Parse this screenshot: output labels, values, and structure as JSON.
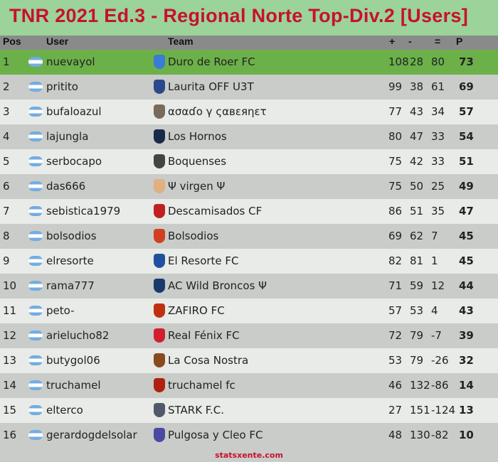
{
  "title": "TNR 2021 Ed.3 - Regional Norte Top-Div.2 [Users]",
  "headers": {
    "pos": "Pos",
    "user": "User",
    "team": "Team",
    "plus": "+",
    "minus": "-",
    "diff": "=",
    "points": "P"
  },
  "colors": {
    "title": "#c8102e",
    "leader_row": "#6cb04a",
    "header_bg": "#8a8a8a"
  },
  "rows": [
    {
      "pos": "1",
      "user": "nuevayol",
      "team": "Duro de Roer FC",
      "plus": "108",
      "minus": "28",
      "diff": "80",
      "points": "73",
      "crest": "#3a7bd5"
    },
    {
      "pos": "2",
      "user": "pritito",
      "team": "Laurita OFF U3T",
      "plus": "99",
      "minus": "38",
      "diff": "61",
      "points": "69",
      "crest": "#2a4a8a"
    },
    {
      "pos": "3",
      "user": "bufaloazul",
      "team": "ασαɗο γ ςαвεяηετ",
      "plus": "77",
      "minus": "43",
      "diff": "34",
      "points": "57",
      "crest": "#7a6a5a"
    },
    {
      "pos": "4",
      "user": "lajungla",
      "team": "Los Hornos",
      "plus": "80",
      "minus": "47",
      "diff": "33",
      "points": "54",
      "crest": "#1a2a4a"
    },
    {
      "pos": "5",
      "user": "serbocapo",
      "team": "Boquenses",
      "plus": "75",
      "minus": "42",
      "diff": "33",
      "points": "51",
      "crest": "#444"
    },
    {
      "pos": "6",
      "user": "das666",
      "team": "Ψ virgen Ψ",
      "plus": "75",
      "minus": "50",
      "diff": "25",
      "points": "49",
      "crest": "#e0b080"
    },
    {
      "pos": "7",
      "user": "sebistica1979",
      "team": "Descamisados CF",
      "plus": "86",
      "minus": "51",
      "diff": "35",
      "points": "47",
      "crest": "#c02020"
    },
    {
      "pos": "8",
      "user": "bolsodios",
      "team": "Bolsodios",
      "plus": "69",
      "minus": "62",
      "diff": "7",
      "points": "45",
      "crest": "#d04020"
    },
    {
      "pos": "9",
      "user": "elresorte",
      "team": "El Resorte FC",
      "plus": "82",
      "minus": "81",
      "diff": "1",
      "points": "45",
      "crest": "#2050a0"
    },
    {
      "pos": "10",
      "user": "rama777",
      "team": "AC Wild Broncos Ψ",
      "plus": "71",
      "minus": "59",
      "diff": "12",
      "points": "44",
      "crest": "#1a3a6a"
    },
    {
      "pos": "11",
      "user": "peto-",
      "team": "ZAFIRO FC",
      "plus": "57",
      "minus": "53",
      "diff": "4",
      "points": "43",
      "crest": "#c03010"
    },
    {
      "pos": "12",
      "user": "arielucho82",
      "team": "Real Fénix FC",
      "plus": "72",
      "minus": "79",
      "diff": "-7",
      "points": "39",
      "crest": "#d02030"
    },
    {
      "pos": "13",
      "user": "butygol06",
      "team": "La Cosa Nostra",
      "plus": "53",
      "minus": "79",
      "diff": "-26",
      "points": "32",
      "crest": "#8a4a20"
    },
    {
      "pos": "14",
      "user": "truchamel",
      "team": "truchamel fc",
      "plus": "46",
      "minus": "132",
      "diff": "-86",
      "points": "14",
      "crest": "#b02010"
    },
    {
      "pos": "15",
      "user": "elterco",
      "team": "STARK F.C.",
      "plus": "27",
      "minus": "151",
      "diff": "-124",
      "points": "13",
      "crest": "#505a6a"
    },
    {
      "pos": "16",
      "user": "gerardogdelsolar",
      "team": "Pulgosa y Cleo FC",
      "plus": "48",
      "minus": "130",
      "diff": "-82",
      "points": "10",
      "crest": "#4a4aa0"
    }
  ],
  "footer": "statsxente.com"
}
